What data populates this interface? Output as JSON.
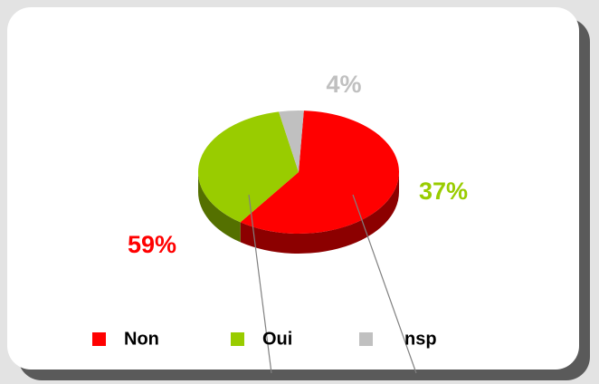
{
  "chart_data": {
    "type": "pie",
    "categories": [
      "Non",
      "Oui",
      "nsp"
    ],
    "series": [
      {
        "values": [
          59,
          37,
          4
        ],
        "value_labels": [
          "59%",
          "37%",
          "4%"
        ],
        "colors": [
          "#ff0000",
          "#99cc00",
          "#c0c0c0"
        ]
      }
    ],
    "legend": "bottom"
  }
}
